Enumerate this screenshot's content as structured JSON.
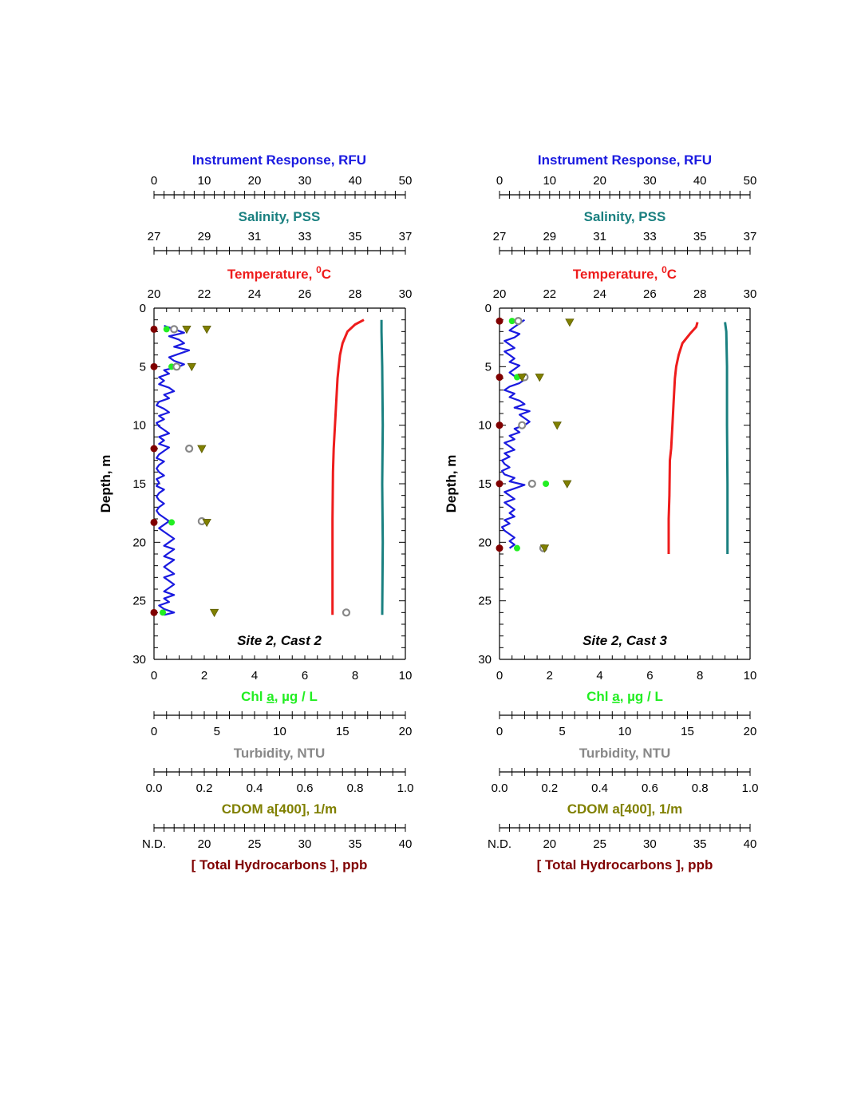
{
  "colors": {
    "instrument": "#1a1ae0",
    "salinity": "#1a8080",
    "temperature": "#ee1c1c",
    "chl": "#22ee22",
    "turbidity": "#888888",
    "cdom": "#808000",
    "hydrocarbons": "#800000",
    "axis": "#000000"
  },
  "chart_data": [
    {
      "type": "line",
      "panel": "left",
      "title": "Site 2, Cast 2",
      "ylabel": "Depth, m",
      "ylim": [
        0,
        30
      ],
      "y_ticks": [
        "0",
        "5",
        "10",
        "15",
        "20",
        "25",
        "30"
      ],
      "axes": {
        "instrument": {
          "label_main": "Instrument Response",
          "label_unit": ", RFU",
          "range": [
            0,
            50
          ],
          "ticks": [
            "0",
            "10",
            "20",
            "30",
            "40",
            "50"
          ]
        },
        "salinity": {
          "label_main": "Salinity",
          "label_unit": ", PSS",
          "range": [
            27,
            37
          ],
          "ticks": [
            "27",
            "29",
            "31",
            "33",
            "35",
            "37"
          ]
        },
        "temperature": {
          "label_main": "Temperature",
          "label_unit": ", ",
          "label_sup": "0",
          "label_end": "C",
          "range": [
            20,
            30
          ],
          "ticks": [
            "20",
            "22",
            "24",
            "26",
            "28",
            "30"
          ]
        },
        "chl": {
          "label_pre": "Chl ",
          "label_u": "a",
          "label_post": ", µg / L",
          "range": [
            0,
            10
          ],
          "ticks": [
            "0",
            "2",
            "4",
            "6",
            "8",
            "10"
          ]
        },
        "turbidity": {
          "label_main": "Turbidity",
          "label_unit": ", NTU",
          "range": [
            0,
            20
          ],
          "ticks": [
            "0",
            "5",
            "10",
            "15",
            "20"
          ]
        },
        "cdom": {
          "label_main": "CDOM a[400]",
          "label_unit": ", 1/m",
          "range": [
            0.0,
            1.0
          ],
          "ticks": [
            "0.0",
            "0.2",
            "0.4",
            "0.6",
            "0.8",
            "1.0"
          ]
        },
        "hydrocarbons": {
          "label_main": "[ Total Hydrocarbons ]",
          "label_unit": ", ppb",
          "range": [
            15,
            40
          ],
          "ticks": [
            "N.D.",
            "20",
            "25",
            "30",
            "35",
            "40"
          ]
        }
      },
      "series": [
        {
          "name": "Instrument Response",
          "axis": "instrument",
          "depth": [
            1.5,
            1.8,
            2.1,
            2.4,
            2.7,
            3.0,
            3.3,
            3.6,
            3.9,
            4.2,
            4.5,
            4.8,
            5.0,
            5.3,
            5.6,
            5.9,
            6.2,
            6.5,
            6.8,
            7.1,
            7.4,
            7.7,
            8.0,
            8.3,
            8.6,
            8.9,
            9.2,
            9.5,
            9.8,
            10.1,
            10.4,
            10.7,
            11.0,
            11.3,
            11.6,
            11.9,
            12.2,
            12.5,
            12.8,
            13.1,
            13.4,
            13.7,
            14.0,
            14.3,
            14.6,
            14.9,
            15.2,
            15.5,
            15.8,
            16.1,
            16.4,
            16.7,
            17.0,
            17.3,
            17.6,
            17.9,
            18.2,
            18.5,
            18.8,
            19.1,
            19.4,
            19.7,
            20.0,
            20.3,
            20.6,
            20.9,
            21.2,
            21.5,
            21.8,
            22.1,
            22.4,
            22.7,
            23.0,
            23.3,
            23.6,
            23.9,
            24.2,
            24.5,
            24.8,
            25.1,
            25.4,
            25.7,
            26.0,
            26.2
          ],
          "values": [
            2,
            4,
            6,
            3,
            5,
            6,
            4,
            7,
            5,
            3,
            4,
            6,
            5,
            2,
            3,
            1,
            2,
            1,
            3,
            4,
            2,
            3,
            1,
            0.5,
            2,
            3,
            1,
            2,
            0.5,
            1,
            2,
            3,
            1,
            2,
            1,
            3,
            2,
            1,
            0.5,
            2,
            1,
            0.5,
            1,
            2,
            0.5,
            1,
            0.5,
            2,
            1,
            0.5,
            1,
            2,
            1,
            0.5,
            1,
            2,
            3,
            2,
            1,
            2,
            3,
            4,
            3,
            2,
            4,
            3,
            2,
            4,
            3,
            2,
            3,
            4,
            2,
            3,
            4,
            3,
            2,
            4,
            2,
            3,
            1,
            2,
            4,
            2
          ]
        },
        {
          "name": "Salinity",
          "axis": "salinity",
          "depth": [
            1.0,
            2.0,
            5.0,
            10.0,
            15.0,
            20.0,
            26.2
          ],
          "values": [
            36.05,
            36.05,
            36.08,
            36.1,
            36.08,
            36.1,
            36.08
          ]
        },
        {
          "name": "Temperature",
          "axis": "temperature",
          "depth": [
            1.0,
            1.4,
            2.0,
            3.0,
            4.0,
            5.0,
            6.0,
            8.0,
            10.0,
            12.0,
            14.0,
            18.0,
            22.0,
            26.2
          ],
          "values": [
            28.35,
            28.0,
            27.7,
            27.5,
            27.4,
            27.35,
            27.3,
            27.25,
            27.2,
            27.15,
            27.12,
            27.1,
            27.1,
            27.1
          ]
        }
      ],
      "points": [
        {
          "name": "Chl a",
          "axis": "chl",
          "depth": [
            1.8,
            5.0,
            18.3,
            26.0
          ],
          "values": [
            0.5,
            0.7,
            0.7,
            0.35
          ]
        },
        {
          "name": "Turbidity",
          "axis": "turbidity",
          "depth": [
            1.8,
            5.0,
            12.0,
            18.2,
            26.0
          ],
          "values": [
            1.6,
            1.8,
            2.8,
            3.8,
            15.3
          ]
        },
        {
          "name": "CDOM",
          "axis": "cdom",
          "depth": [
            1.8,
            1.8,
            5.0,
            12.0,
            18.3,
            26.0
          ],
          "values": [
            0.13,
            0.21,
            0.15,
            0.19,
            0.21,
            0.24
          ]
        },
        {
          "name": "Total Hydrocarbons",
          "axis": "hydrocarbons",
          "depth": [
            1.8,
            5.0,
            12.0,
            18.3,
            26.0
          ],
          "values": [
            15,
            15,
            15,
            15,
            15
          ]
        }
      ]
    },
    {
      "type": "line",
      "panel": "right",
      "title": "Site 2, Cast 3",
      "ylabel": "Depth, m",
      "ylim": [
        0,
        30
      ],
      "y_ticks": [
        "0",
        "5",
        "10",
        "15",
        "20",
        "25",
        "30"
      ],
      "axes": {
        "instrument": {
          "label_main": "Instrument Response",
          "label_unit": ", RFU",
          "range": [
            0,
            50
          ],
          "ticks": [
            "0",
            "10",
            "20",
            "30",
            "40",
            "50"
          ]
        },
        "salinity": {
          "label_main": "Salinity",
          "label_unit": ", PSS",
          "range": [
            27,
            37
          ],
          "ticks": [
            "27",
            "29",
            "31",
            "33",
            "35",
            "37"
          ]
        },
        "temperature": {
          "label_main": "Temperature",
          "label_unit": ", ",
          "label_sup": "0",
          "label_end": "C",
          "range": [
            20,
            30
          ],
          "ticks": [
            "20",
            "22",
            "24",
            "26",
            "28",
            "30"
          ]
        },
        "chl": {
          "label_pre": "Chl ",
          "label_u": "a",
          "label_post": ", µg / L",
          "range": [
            0,
            10
          ],
          "ticks": [
            "0",
            "2",
            "4",
            "6",
            "8",
            "10"
          ]
        },
        "turbidity": {
          "label_main": "Turbidity",
          "label_unit": ", NTU",
          "range": [
            0,
            20
          ],
          "ticks": [
            "0",
            "5",
            "10",
            "15",
            "20"
          ]
        },
        "cdom": {
          "label_main": "CDOM a[400]",
          "label_unit": ", 1/m",
          "range": [
            0.0,
            1.0
          ],
          "ticks": [
            "0.0",
            "0.2",
            "0.4",
            "0.6",
            "0.8",
            "1.0"
          ]
        },
        "hydrocarbons": {
          "label_main": "[ Total Hydrocarbons ]",
          "label_unit": ", ppb",
          "range": [
            15,
            40
          ],
          "ticks": [
            "N.D.",
            "20",
            "25",
            "30",
            "35",
            "40"
          ]
        }
      },
      "series": [
        {
          "name": "Instrument Response",
          "axis": "instrument",
          "depth": [
            1.0,
            1.3,
            1.6,
            1.9,
            2.2,
            2.5,
            2.8,
            3.1,
            3.4,
            3.7,
            4.0,
            4.3,
            4.6,
            4.9,
            5.2,
            5.5,
            5.8,
            6.1,
            6.4,
            6.7,
            7.0,
            7.3,
            7.6,
            7.9,
            8.2,
            8.5,
            8.8,
            9.1,
            9.4,
            9.7,
            10.0,
            10.3,
            10.6,
            10.9,
            11.2,
            11.5,
            11.8,
            12.1,
            12.4,
            12.7,
            13.0,
            13.3,
            13.6,
            13.9,
            14.2,
            14.5,
            14.8,
            15.1,
            15.4,
            15.7,
            16.0,
            16.3,
            16.6,
            16.9,
            17.2,
            17.5,
            17.8,
            18.1,
            18.4,
            18.7,
            19.0,
            19.3,
            19.6,
            19.9,
            20.2,
            20.5
          ],
          "values": [
            5,
            4,
            3,
            2,
            4,
            3,
            1,
            2,
            3,
            1,
            2,
            3,
            2,
            4,
            3,
            2,
            3,
            5,
            4,
            2,
            1,
            3,
            2,
            4,
            5,
            3,
            6,
            4,
            5,
            6,
            5,
            3,
            4,
            2,
            3,
            1,
            2,
            3,
            1,
            2,
            0.5,
            1,
            2,
            0.5,
            1,
            3,
            2,
            5,
            3,
            1,
            2,
            3,
            1,
            2,
            3,
            2,
            3,
            1,
            2,
            0.5,
            1,
            2,
            3,
            2,
            3,
            2
          ]
        },
        {
          "name": "Salinity",
          "axis": "salinity",
          "depth": [
            1.2,
            2.0,
            5.0,
            10.0,
            15.0,
            21.0
          ],
          "values": [
            36.0,
            36.05,
            36.08,
            36.08,
            36.1,
            36.1
          ]
        },
        {
          "name": "Temperature",
          "axis": "temperature",
          "depth": [
            1.2,
            1.6,
            2.2,
            3.0,
            4.0,
            5.0,
            6.0,
            8.0,
            10.0,
            12.0,
            13.0,
            16.0,
            18.0,
            21.0
          ],
          "values": [
            27.9,
            27.85,
            27.6,
            27.3,
            27.15,
            27.05,
            27.0,
            26.95,
            26.9,
            26.85,
            26.8,
            26.78,
            26.75,
            26.75
          ]
        }
      ],
      "points": [
        {
          "name": "Chl a",
          "axis": "chl",
          "depth": [
            1.1,
            5.9,
            15.0,
            20.5
          ],
          "values": [
            0.5,
            0.7,
            1.85,
            0.7
          ]
        },
        {
          "name": "Turbidity",
          "axis": "turbidity",
          "depth": [
            1.1,
            5.9,
            10.0,
            15.0,
            20.5
          ],
          "values": [
            1.5,
            2.0,
            1.8,
            2.6,
            3.5
          ]
        },
        {
          "name": "CDOM",
          "axis": "cdom",
          "depth": [
            1.2,
            5.9,
            5.9,
            10.0,
            15.0,
            20.5
          ],
          "values": [
            0.28,
            0.09,
            0.16,
            0.23,
            0.27,
            0.18
          ]
        },
        {
          "name": "Total Hydrocarbons",
          "axis": "hydrocarbons",
          "depth": [
            1.1,
            5.9,
            10.0,
            15.0,
            20.5
          ],
          "values": [
            15,
            15,
            15,
            15,
            15
          ]
        }
      ]
    }
  ]
}
